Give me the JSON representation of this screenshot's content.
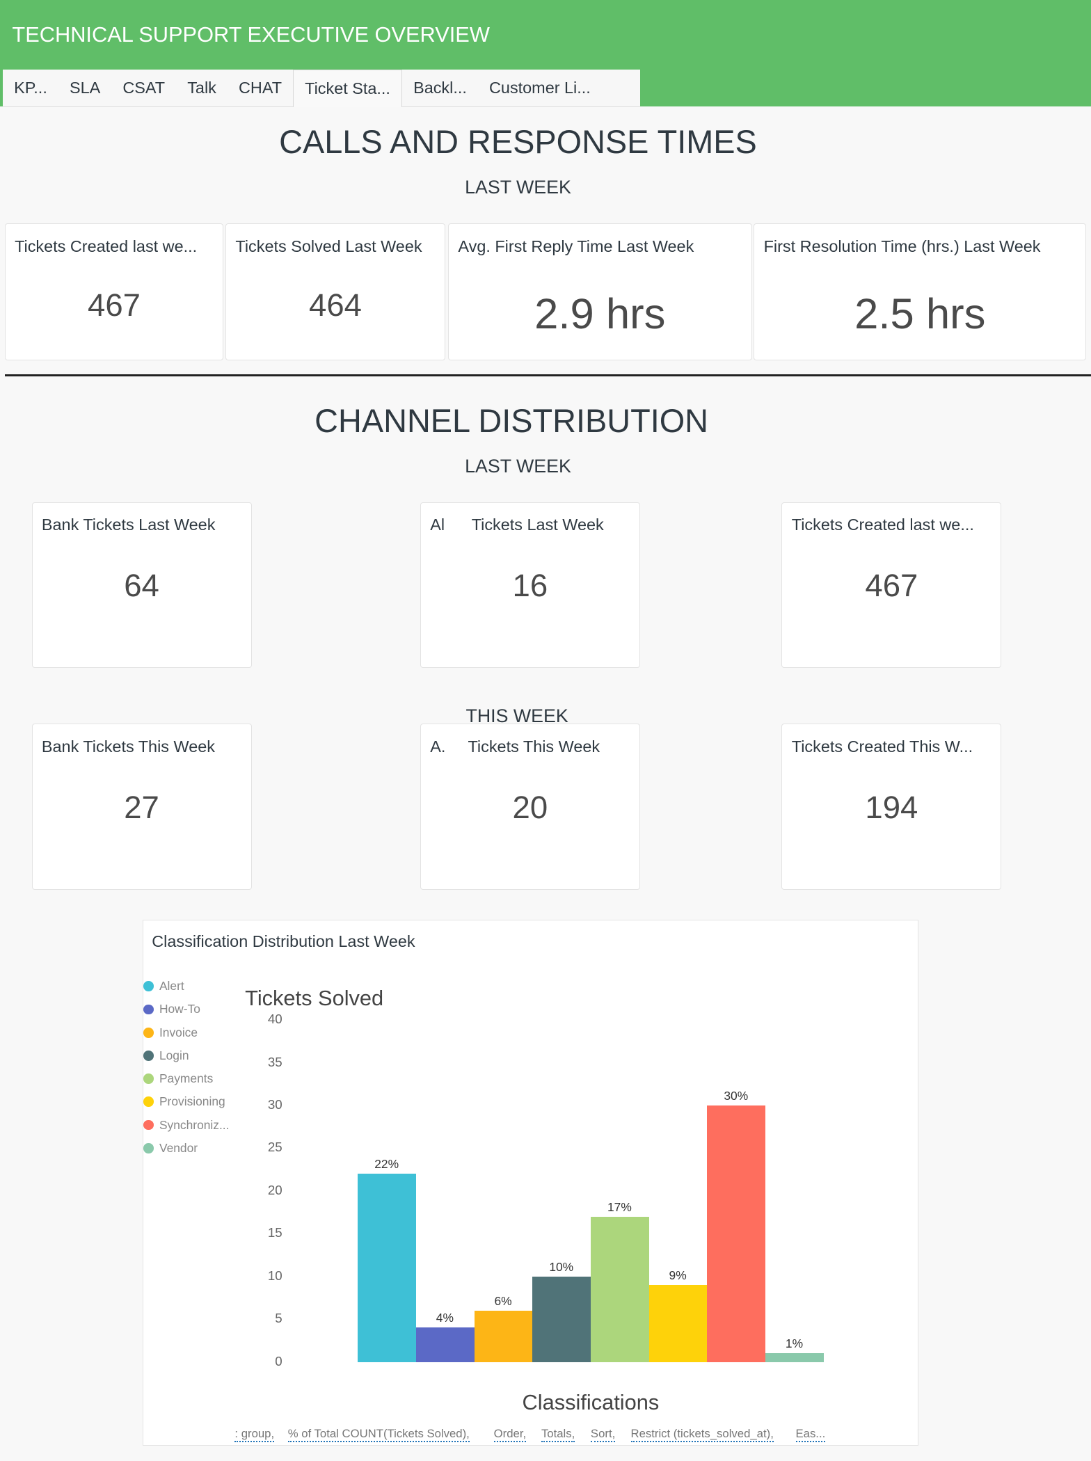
{
  "app_title": "TECHNICAL SUPPORT EXECUTIVE OVERVIEW",
  "tabs": [
    "KP...",
    "SLA",
    "CSAT",
    "Talk",
    "CHAT",
    "Ticket Sta...",
    "Backl...",
    "Customer Li..."
  ],
  "active_tab": "Ticket Sta...",
  "section1": {
    "title": "CALLS AND RESPONSE TIMES",
    "subtitle": "LAST WEEK",
    "cards": [
      {
        "title": "Tickets Created last we...",
        "value": "467"
      },
      {
        "title": "Tickets Solved Last Week",
        "value": "464"
      },
      {
        "title": "Avg. First Reply Time Last Week",
        "value": "2.9 hrs"
      },
      {
        "title": "First Resolution Time (hrs.) Last Week",
        "value": "2.5 hrs"
      }
    ]
  },
  "section2": {
    "title": "CHANNEL DISTRIBUTION",
    "subtitle_last": "LAST WEEK",
    "subtitle_this": "THIS WEEK",
    "last_week": [
      {
        "title": "Bank Tickets Last Week",
        "value": "64"
      },
      {
        "title": "Al      Tickets Last Week",
        "value": "16"
      },
      {
        "title": "Tickets Created last we...",
        "value": "467"
      }
    ],
    "this_week": [
      {
        "title": "Bank Tickets This Week",
        "value": "27"
      },
      {
        "title": "A.     Tickets This Week",
        "value": "20"
      },
      {
        "title": "Tickets Created This W...",
        "value": "194"
      }
    ]
  },
  "chart_panel_title": "Classification Distribution Last Week",
  "chart_data": {
    "type": "bar",
    "title": "Tickets Solved",
    "xlabel": "Classifications",
    "ylabel": "Tickets Solved",
    "ylim": [
      0,
      40
    ],
    "yticks": [
      "0",
      "5",
      "10",
      "15",
      "20",
      "25",
      "30",
      "35",
      "40"
    ],
    "categories": [
      "Alert",
      "How-To",
      "Invoice",
      "Login",
      "Payments",
      "Provisioning",
      "Synchronization",
      "Vendor"
    ],
    "legend_labels": [
      "Alert",
      "How-To",
      "Invoice",
      "Login",
      "Payments",
      "Provisioning",
      "Synchroniz...",
      "Vendor"
    ],
    "values": [
      22,
      4,
      6,
      10,
      17,
      9,
      30,
      1
    ],
    "data_labels": [
      "22%",
      "4%",
      "6%",
      "10%",
      "17%",
      "9%",
      "30%",
      "1%"
    ],
    "colors": [
      "#3ec0d6",
      "#5b69c6",
      "#fdb516",
      "#507378",
      "#acd67c",
      "#fed20a",
      "#fe6e5e",
      "#8ac9ab"
    ],
    "legend": "left"
  },
  "footer_tags": [
    ": group,",
    "% of Total COUNT(Tickets Solved),",
    "Order,",
    "Totals,",
    "Sort,",
    "Restrict (tickets_solved_at),",
    "Eas..."
  ]
}
